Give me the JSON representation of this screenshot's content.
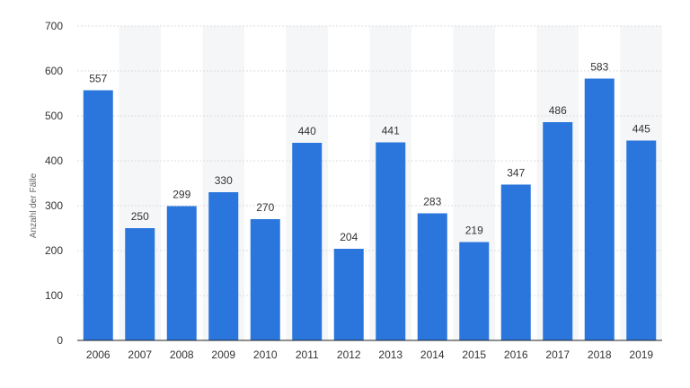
{
  "chart_data": {
    "type": "bar",
    "title": "",
    "xlabel": "",
    "ylabel": "Anzahl der Fälle",
    "categories": [
      "2006",
      "2007",
      "2008",
      "2009",
      "2010",
      "2011",
      "2012",
      "2013",
      "2014",
      "2015",
      "2016",
      "2017",
      "2018",
      "2019"
    ],
    "values": [
      557,
      250,
      299,
      330,
      270,
      440,
      204,
      441,
      283,
      219,
      347,
      486,
      583,
      445
    ],
    "ylim": [
      0,
      700
    ],
    "yticks": [
      0,
      100,
      200,
      300,
      400,
      500,
      600,
      700
    ],
    "grid": true,
    "data_labels": true,
    "bar_color": "#2a76dd",
    "band_color": "#f5f6f8",
    "grid_color": "#dcdcdc",
    "axis_color": "#222222"
  }
}
